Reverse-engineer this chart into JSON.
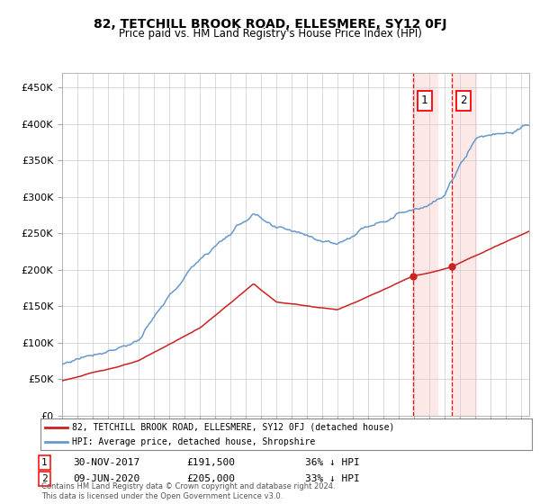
{
  "title_display": "82, TETCHILL BROOK ROAD, ELLESMERE, SY12 0FJ",
  "subtitle": "Price paid vs. HM Land Registry's House Price Index (HPI)",
  "ytick_values": [
    0,
    50000,
    100000,
    150000,
    200000,
    250000,
    300000,
    350000,
    400000,
    450000
  ],
  "ylim": [
    0,
    470000
  ],
  "xlim_start": 1995.0,
  "xlim_end": 2025.5,
  "hpi_color": "#6699cc",
  "price_color": "#cc2222",
  "transaction1_date": 2017.917,
  "transaction1_price": 191500,
  "transaction2_date": 2020.44,
  "transaction2_price": 205000,
  "legend_line1": "82, TETCHILL BROOK ROAD, ELLESMERE, SY12 0FJ (detached house)",
  "legend_line2": "HPI: Average price, detached house, Shropshire",
  "table_row1_date": "30-NOV-2017",
  "table_row1_price": "£191,500",
  "table_row1_hpi": "36% ↓ HPI",
  "table_row2_date": "09-JUN-2020",
  "table_row2_price": "£205,000",
  "table_row2_hpi": "33% ↓ HPI",
  "footer": "Contains HM Land Registry data © Crown copyright and database right 2024.\nThis data is licensed under the Open Government Licence v3.0.",
  "background_color": "#ffffff",
  "grid_color": "#cccccc",
  "highlight_color": "#fde8e8"
}
